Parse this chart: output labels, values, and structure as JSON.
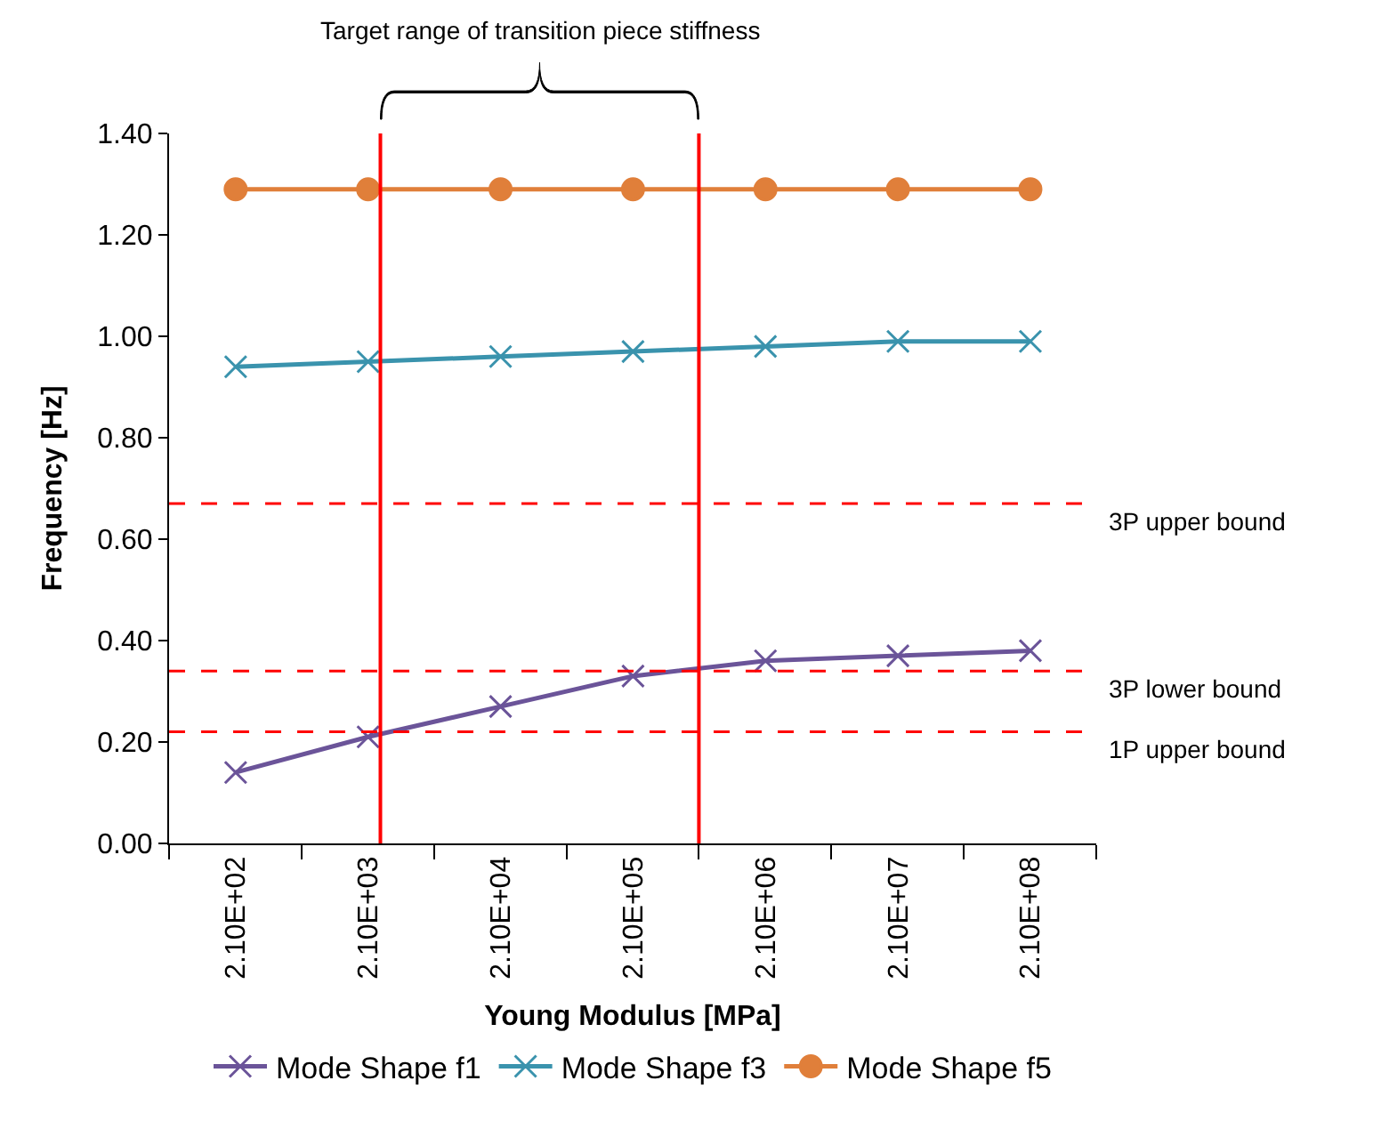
{
  "chart_data": {
    "type": "line",
    "xlabel": "Young Modulus [MPa]",
    "ylabel": "Frequency [Hz]",
    "x": [
      210,
      2100,
      21000,
      210000,
      2100000,
      21000000,
      210000000
    ],
    "log": "x",
    "xlim": [
      66,
      660000000
    ],
    "xticks": [
      {
        "value": 66,
        "label": null
      },
      {
        "value": 210,
        "label": "2.10E+02"
      },
      {
        "value": 660,
        "label": null
      },
      {
        "value": 2100,
        "label": "2.10E+03"
      },
      {
        "value": 6600,
        "label": null
      },
      {
        "value": 21000,
        "label": "2.10E+04"
      },
      {
        "value": 66000,
        "label": null
      },
      {
        "value": 210000,
        "label": "2.10E+05"
      },
      {
        "value": 660000,
        "label": null
      },
      {
        "value": 2100000,
        "label": "2.10E+06"
      },
      {
        "value": 6600000,
        "label": null
      },
      {
        "value": 21000000,
        "label": "2.10E+07"
      },
      {
        "value": 66000000,
        "label": null
      },
      {
        "value": 210000000,
        "label": "2.10E+08"
      },
      {
        "value": 660000000,
        "label": null
      }
    ],
    "series": [
      {
        "name": "Mode Shape f1",
        "color": "#6b5499",
        "marker": "cross",
        "values": [
          0.14,
          0.21,
          0.27,
          0.33,
          0.36,
          0.37,
          0.38
        ]
      },
      {
        "name": "Mode Shape f3",
        "color": "#3a93ad",
        "marker": "cross",
        "values": [
          0.94,
          0.95,
          0.96,
          0.97,
          0.98,
          0.99,
          0.99
        ]
      },
      {
        "name": "Mode Shape f5",
        "color": "#e07f3a",
        "marker": "circle",
        "values": [
          1.29,
          1.29,
          1.29,
          1.29,
          1.29,
          1.29,
          1.29
        ]
      }
    ],
    "ylim": [
      0,
      1.4
    ],
    "yticks": [
      {
        "value": 0,
        "label": "0.00"
      },
      {
        "value": 0.2,
        "label": "0.20"
      },
      {
        "value": 0.4,
        "label": "0.40"
      },
      {
        "value": 0.6,
        "label": "0.60"
      },
      {
        "value": 0.8,
        "label": "0.80"
      },
      {
        "value": 1.0,
        "label": "1.00"
      },
      {
        "value": 1.2,
        "label": "1.20"
      },
      {
        "value": 1.4,
        "label": "1.40"
      }
    ],
    "ref_lines": [
      {
        "axis": "y",
        "value": 0.67,
        "label": "3P upper bound",
        "color": "#ff0000",
        "line_style": "dashed"
      },
      {
        "axis": "y",
        "value": 0.34,
        "label": "3P lower bound",
        "color": "#ff0000",
        "line_style": "dashed"
      },
      {
        "axis": "y",
        "value": 0.22,
        "label": "1P upper bound",
        "color": "#ff0000",
        "line_style": "dashed"
      },
      {
        "axis": "x",
        "value": 2600,
        "color": "#ff0000",
        "line_style": "solid"
      },
      {
        "axis": "x",
        "value": 660000,
        "color": "#ff0000",
        "line_style": "solid"
      }
    ],
    "annotations": [
      "Target range of transition piece stiffness"
    ],
    "legend": "bottom",
    "line_style": "solid"
  }
}
